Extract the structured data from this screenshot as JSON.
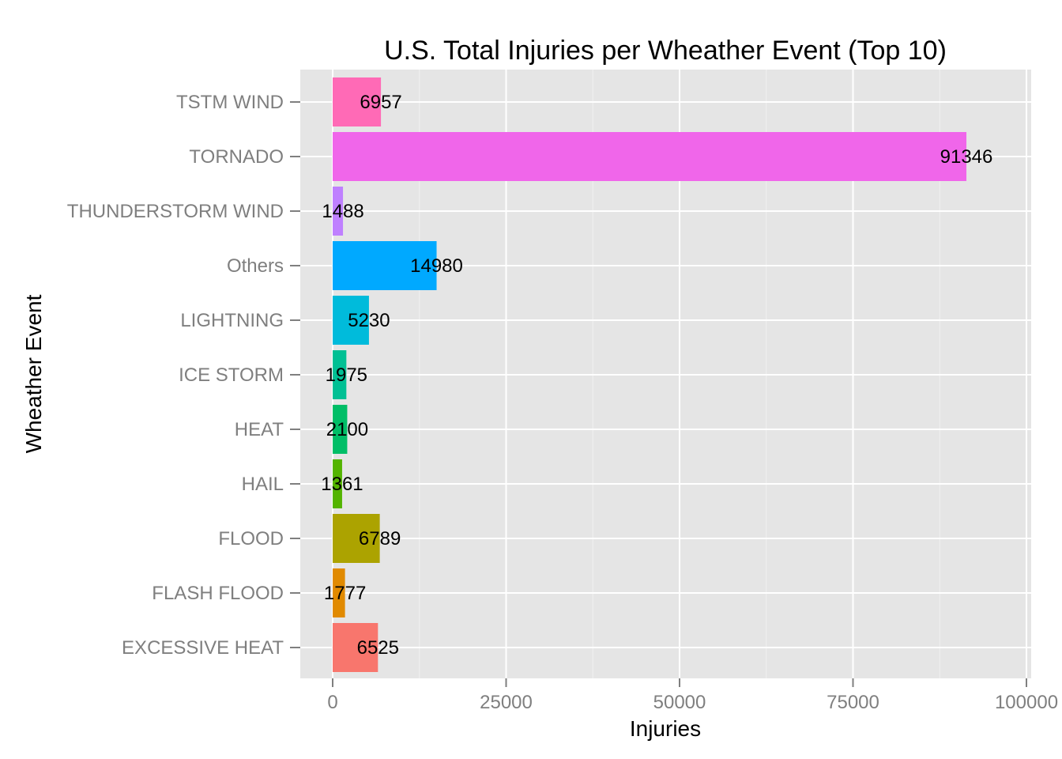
{
  "chart_data": {
    "type": "bar",
    "orientation": "horizontal",
    "title": "U.S. Total Injuries per Wheather Event (Top 10)",
    "xlabel": "Injuries",
    "ylabel": "Wheather Event",
    "xlim": [
      -4567,
      100000
    ],
    "x_ticks": [
      0,
      25000,
      50000,
      75000,
      100000
    ],
    "x_tick_labels": [
      "0",
      "25000",
      "50000",
      "75000",
      "100000"
    ],
    "grid": true,
    "legend": "none",
    "panel_background": "#e5e5e5",
    "categories": [
      "EXCESSIVE HEAT",
      "FLASH FLOOD",
      "FLOOD",
      "HAIL",
      "HEAT",
      "ICE STORM",
      "LIGHTNING",
      "Others",
      "THUNDERSTORM WIND",
      "TORNADO",
      "TSTM WIND"
    ],
    "values": [
      6525,
      1777,
      6789,
      1361,
      2100,
      1975,
      5230,
      14980,
      1488,
      91346,
      6957
    ],
    "data_labels": [
      "6525",
      "1777",
      "6789",
      "1361",
      "2100",
      "1975",
      "5230",
      "14980",
      "1488",
      "91346",
      "6957"
    ],
    "colors": [
      "#F8766D",
      "#E18A00",
      "#ACA300",
      "#53B400",
      "#00BE67",
      "#00C094",
      "#00BBDB",
      "#00A9FF",
      "#BF80FF",
      "#F066EA",
      "#FF6AB6"
    ]
  }
}
